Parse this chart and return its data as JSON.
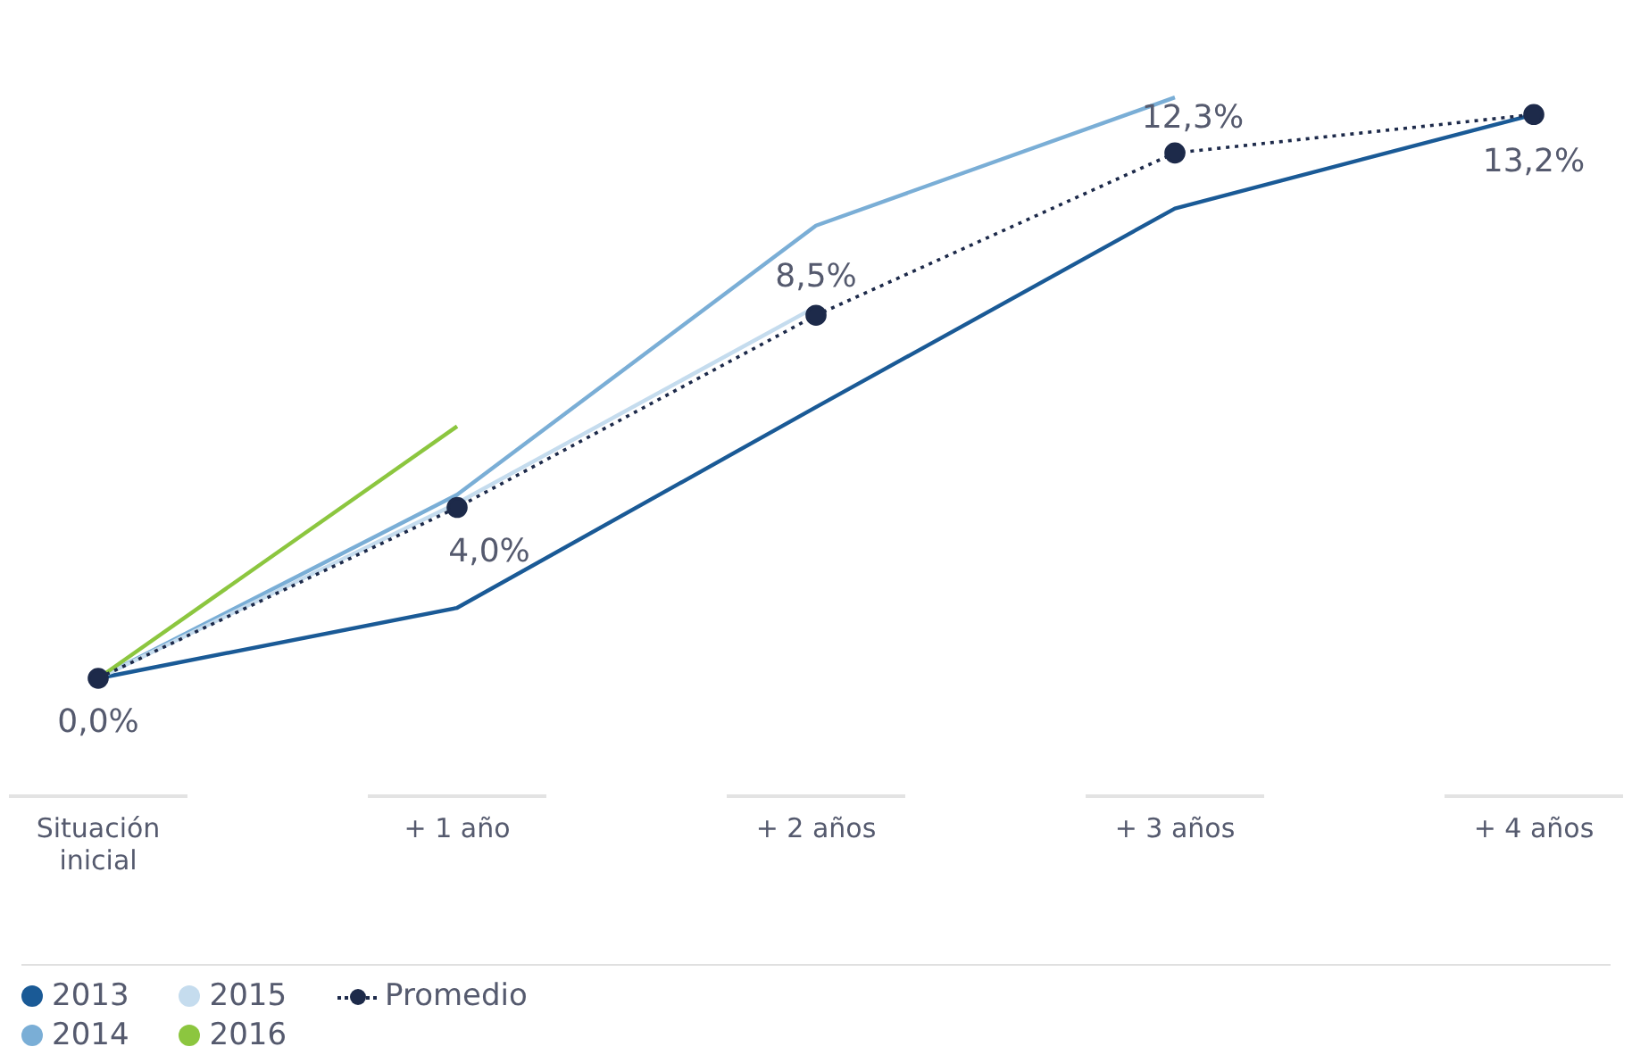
{
  "chart_data": {
    "type": "line",
    "categories": [
      "Situación inicial",
      "+ 1 año",
      "+ 2 años",
      "+ 3 años",
      "+ 4 años"
    ],
    "series": [
      {
        "name": "2013",
        "color": "#1a5a96",
        "values": [
          0,
          1.65,
          6.35,
          11.0,
          13.2
        ]
      },
      {
        "name": "2014",
        "color": "#7aaed6",
        "values": [
          0,
          4.3,
          10.6,
          13.6,
          null
        ]
      },
      {
        "name": "2015",
        "color": "#c5dcee",
        "values": [
          0,
          4.1,
          8.7,
          null,
          null
        ]
      },
      {
        "name": "2016",
        "color": "#8cc63f",
        "values": [
          0,
          5.9,
          null,
          null,
          null
        ]
      },
      {
        "name": "Promedio",
        "color": "#1d2a4a",
        "values": [
          0,
          4.0,
          8.5,
          12.3,
          13.2
        ],
        "line_style": "dotted",
        "marker": "circle",
        "value_labels": [
          "0,0%",
          "4,0%",
          "8,5%",
          "12,3%",
          "13,2%"
        ]
      }
    ],
    "legend": "bottom left",
    "tick_labels": "x",
    "grid": false,
    "marker": "none",
    "line_style": "solid"
  }
}
